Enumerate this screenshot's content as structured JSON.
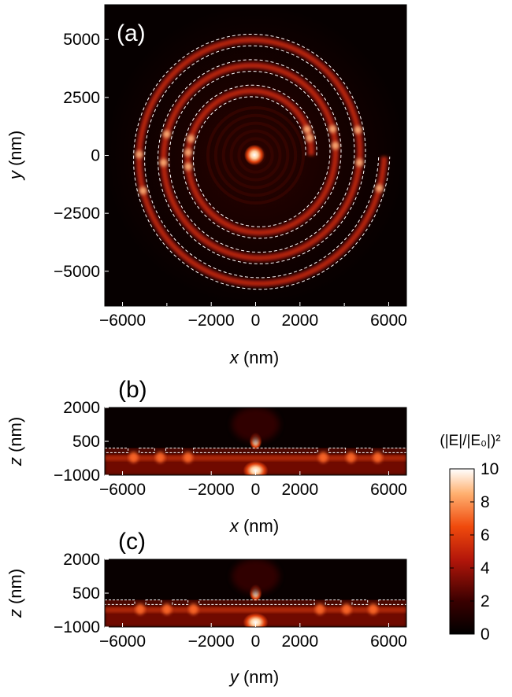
{
  "figure": {
    "panels": [
      {
        "label": "(a)",
        "xlabel_var": "x",
        "xlabel_unit": " (nm)",
        "ylabel_var": "y",
        "ylabel_unit": " (nm)"
      },
      {
        "label": "(b)",
        "xlabel_var": "x",
        "xlabel_unit": " (nm)",
        "ylabel_var": "z",
        "ylabel_unit": " (nm)"
      },
      {
        "label": "(c)",
        "xlabel_var": "y",
        "xlabel_unit": " (nm)",
        "ylabel_var": "z",
        "ylabel_unit": " (nm)"
      }
    ],
    "colorbar": {
      "label": "(|E|/|E₀|)²"
    }
  },
  "colors": {
    "background_map": "#0a0000",
    "low": "#000000",
    "mid": "#b3160a",
    "high": "#ff7a1a",
    "max": "#ffffff",
    "dashed_outline": "#ffffff"
  },
  "chart_data": [
    {
      "panel": "(a)",
      "type": "heatmap",
      "title": "",
      "xlabel": "x (nm)",
      "ylabel": "y (nm)",
      "xlim": [
        -6800,
        6800
      ],
      "ylim": [
        -6500,
        6500
      ],
      "xticks": [
        -6000,
        -2000,
        0,
        2000,
        6000
      ],
      "xtick_labels": [
        "−6000",
        "−2000",
        "0",
        "2000",
        "6000"
      ],
      "yticks": [
        -5000,
        -2500,
        0,
        2500,
        5000
      ],
      "ytick_labels": [
        "−5000",
        "−2500",
        "0",
        "2500",
        "5000"
      ],
      "minor_xticks": [
        -4000,
        4000
      ],
      "spiral": {
        "inner_radius_nm": 2500,
        "outer_radius_nm": 5800,
        "turns": 3,
        "groove_width_nm": 500
      },
      "hotspot": {
        "x": 0,
        "y": 0,
        "value": 10
      }
    },
    {
      "panel": "(b)",
      "type": "heatmap",
      "title": "",
      "xlabel": "x (nm)",
      "ylabel": "z (nm)",
      "xlim": [
        -6800,
        6800
      ],
      "ylim": [
        -1000,
        2000
      ],
      "xticks": [
        -6000,
        -2000,
        0,
        2000,
        6000
      ],
      "xtick_labels": [
        "−6000",
        "−2000",
        "0",
        "2000",
        "6000"
      ],
      "yticks": [
        -1000,
        500,
        2000
      ],
      "ytick_labels": [
        "−1000",
        "500",
        "2000"
      ],
      "layer": {
        "z_bottom": 0,
        "z_top": 200
      },
      "groove_centers": [
        -5500,
        -4300,
        -3050,
        3050,
        4300,
        5500
      ]
    },
    {
      "panel": "(c)",
      "type": "heatmap",
      "title": "",
      "xlabel": "y (nm)",
      "ylabel": "z (nm)",
      "xlim": [
        -6800,
        6800
      ],
      "ylim": [
        -1000,
        2000
      ],
      "xticks": [
        -6000,
        -2000,
        0,
        2000,
        6000
      ],
      "xtick_labels": [
        "−6000",
        "−2000",
        "0",
        "2000",
        "6000"
      ],
      "yticks": [
        -1000,
        500,
        2000
      ],
      "ytick_labels": [
        "−1000",
        "500",
        "2000"
      ],
      "layer": {
        "z_bottom": 0,
        "z_top": 200
      },
      "groove_centers": [
        -5200,
        -4000,
        -2800,
        2900,
        4100,
        5300
      ]
    },
    {
      "panel": "colorbar",
      "type": "heatmap",
      "title": "",
      "label": "(|E|/|E₀|)²",
      "range": [
        0,
        10
      ],
      "ticks": [
        0,
        2,
        4,
        6,
        8,
        10
      ],
      "tick_labels": [
        "0",
        "2",
        "4",
        "6",
        "8",
        "10"
      ]
    }
  ]
}
